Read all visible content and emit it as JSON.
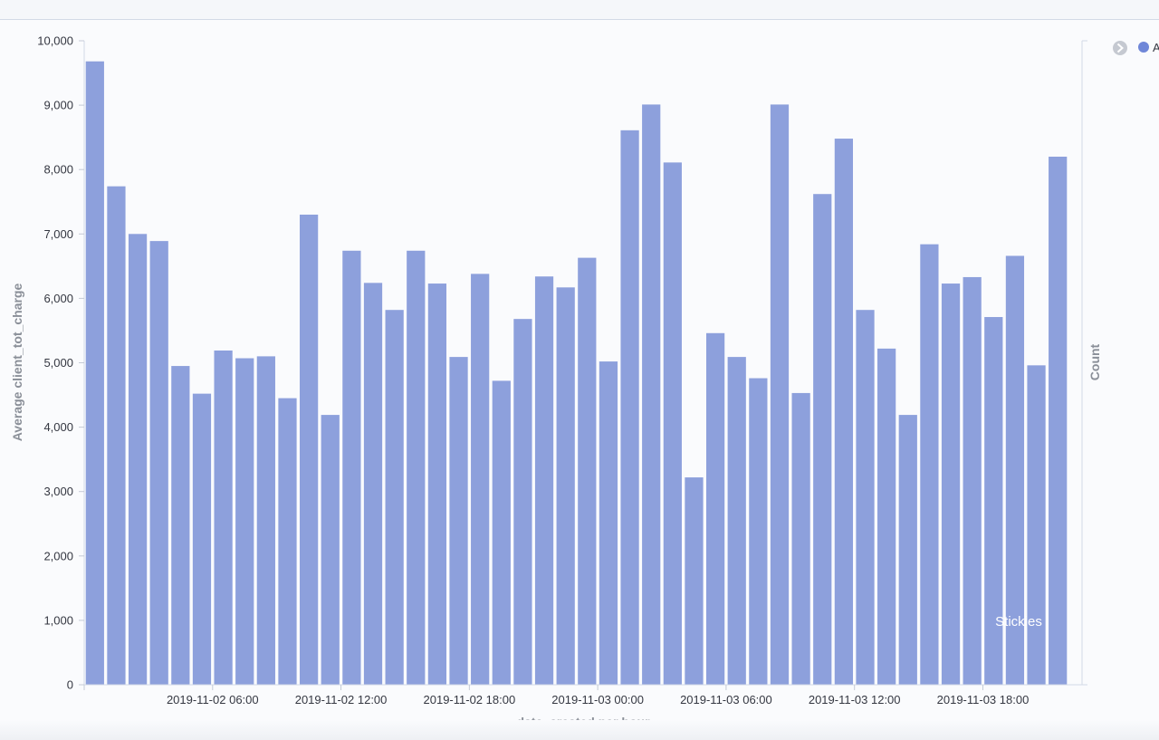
{
  "chart_data": {
    "type": "bar",
    "xlabel": "date_created per hour",
    "ylabel": "Average client_tot_charge",
    "y2label": "Count",
    "ylim": [
      0,
      10000
    ],
    "yticks": [
      "0",
      "1,000",
      "2,000",
      "3,000",
      "4,000",
      "5,000",
      "6,000",
      "7,000",
      "8,000",
      "9,000",
      "10,000"
    ],
    "x_start": "2019-11-02 01:00",
    "x_interval": "1 hour",
    "xtick_labels": [
      {
        "index": 5,
        "label": "2019-11-02 06:00"
      },
      {
        "index": 11,
        "label": "2019-11-02 12:00"
      },
      {
        "index": 17,
        "label": "2019-11-02 18:00"
      },
      {
        "index": 23,
        "label": "2019-11-03 00:00"
      },
      {
        "index": 29,
        "label": "2019-11-03 06:00"
      },
      {
        "index": 35,
        "label": "2019-11-03 12:00"
      },
      {
        "index": 41,
        "label": "2019-11-03 18:00"
      }
    ],
    "values": [
      9680,
      7740,
      7000,
      6890,
      4950,
      4520,
      5190,
      5070,
      5100,
      4450,
      7300,
      4190,
      6740,
      6240,
      5820,
      6740,
      6230,
      5090,
      6380,
      4720,
      5680,
      6340,
      6170,
      6630,
      5020,
      8610,
      9010,
      8110,
      3220,
      5460,
      5090,
      4760,
      9010,
      4530,
      7620,
      8480,
      5820,
      5220,
      4190,
      6840,
      6230,
      6330,
      5710,
      6660,
      4960,
      8200
    ],
    "bar_color": "#8da0dc",
    "grid": false,
    "legend_position": "top-right"
  },
  "legend": {
    "toggle_icon": "chevron-right-icon",
    "items": [
      {
        "label": "A",
        "color": "#6f87d8"
      }
    ]
  },
  "overlay": {
    "label": "Stickies"
  }
}
